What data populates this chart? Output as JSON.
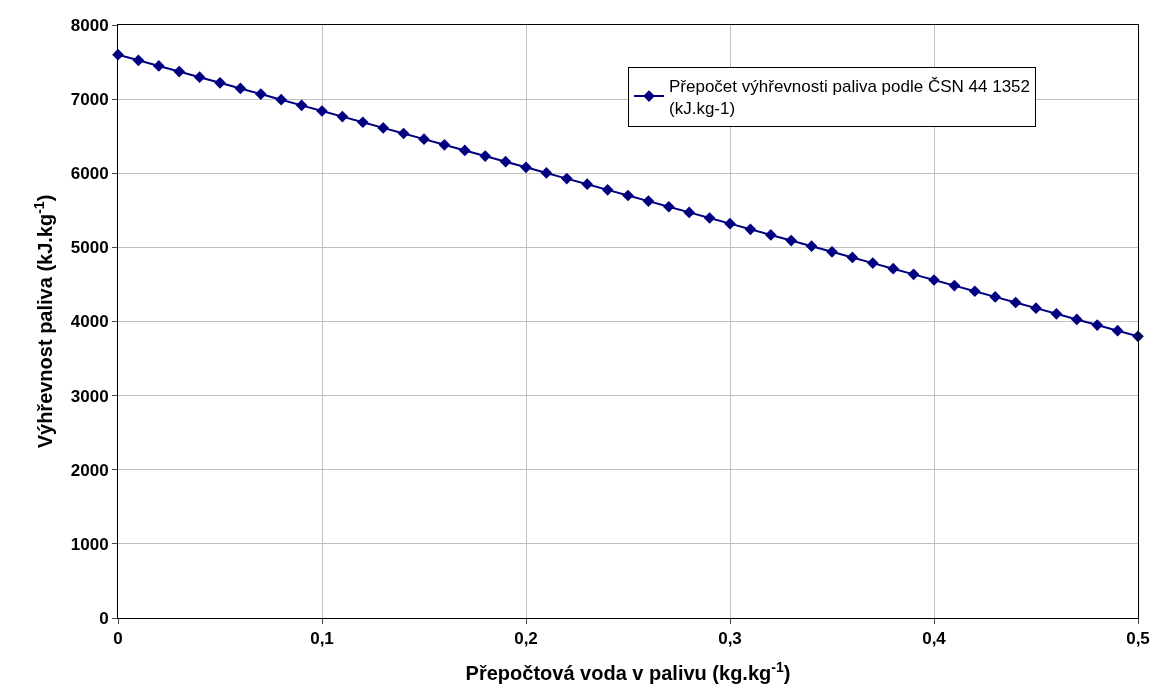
{
  "chart_data": {
    "type": "line",
    "xlabel": "Přepočtová voda v palivu (kg.kg$^{-1}$)",
    "ylabel": "Výhřevnost paliva (kJ.kg$^{-1}$)",
    "x": [
      0,
      0.01,
      0.02,
      0.03,
      0.04,
      0.05,
      0.06,
      0.07,
      0.08,
      0.09,
      0.1,
      0.11,
      0.12,
      0.13,
      0.14,
      0.15,
      0.16,
      0.17,
      0.18,
      0.19,
      0.2,
      0.21,
      0.22,
      0.23,
      0.24,
      0.25,
      0.26,
      0.27,
      0.28,
      0.29,
      0.3,
      0.31,
      0.32,
      0.33,
      0.34,
      0.35,
      0.36,
      0.37,
      0.38,
      0.39,
      0.4,
      0.41,
      0.42,
      0.43,
      0.44,
      0.45,
      0.46,
      0.47,
      0.48,
      0.49,
      0.5
    ],
    "series": [
      {
        "name": "Přepočet výhřevnosti paliva podle ČSN 44 1352\n(kJ.kg-1)",
        "color": "#000080",
        "values": [
          7600,
          7524,
          7448,
          7372,
          7296,
          7220,
          7144,
          7068,
          6992,
          6916,
          6840,
          6764,
          6688,
          6612,
          6536,
          6460,
          6384,
          6308,
          6232,
          6156,
          6080,
          6004,
          5928,
          5852,
          5776,
          5700,
          5624,
          5548,
          5472,
          5396,
          5320,
          5244,
          5168,
          5092,
          5016,
          4940,
          4864,
          4788,
          4712,
          4636,
          4560,
          4484,
          4408,
          4332,
          4256,
          4180,
          4104,
          4028,
          3952,
          3876,
          3800
        ]
      }
    ],
    "xlim": [
      0,
      0.5
    ],
    "xticks": [
      0,
      {
        "value": 0.1,
        "label": "0,1"
      },
      {
        "value": 0.2,
        "label": "0,2"
      },
      {
        "value": 0.3,
        "label": "0,3"
      },
      {
        "value": 0.4,
        "label": "0,4"
      },
      {
        "value": 0.5,
        "label": "0,5"
      }
    ],
    "ylim": [
      0,
      8000
    ],
    "yticks": [
      0,
      1000,
      2000,
      3000,
      4000,
      5000,
      6000,
      7000,
      8000
    ],
    "grid": true,
    "legend": "top right",
    "marker": "diamond",
    "line_style": "solid"
  }
}
